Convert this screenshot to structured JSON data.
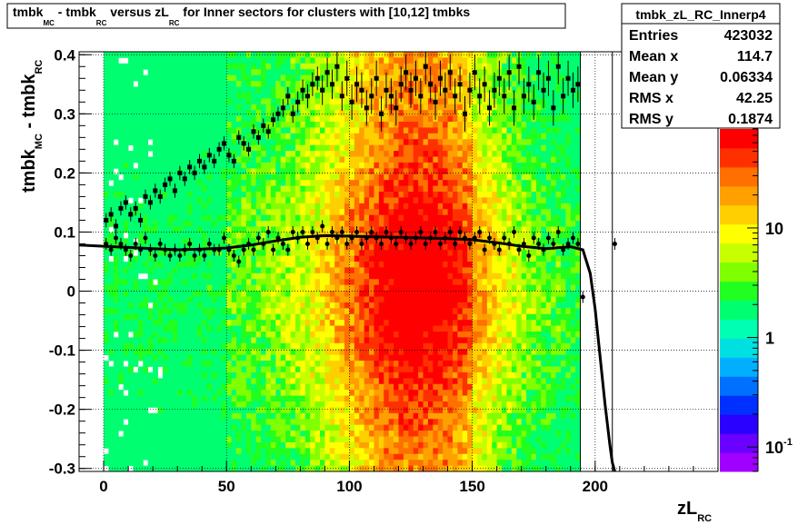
{
  "title": {
    "main": "tmbk",
    "sub1": "MC",
    "mid": " - tmbk",
    "sub2": "RC",
    "mid2": " versus zL",
    "sub3": "RC",
    "rest": " for Inner sectors for clusters with [10,12] tmbks"
  },
  "stats": {
    "name": "tmbk_zL_RC_Innerp4",
    "rows": [
      {
        "label": "Entries",
        "value": "423032"
      },
      {
        "label": "Mean x",
        "value": "114.7"
      },
      {
        "label": "Mean y",
        "value": "0.06334"
      },
      {
        "label": "RMS x",
        "value": "42.25"
      },
      {
        "label": "RMS y",
        "value": "0.1874"
      }
    ]
  },
  "chart_data": {
    "type": "heatmap",
    "xlabel_main": "zL",
    "xlabel_sub": "RC",
    "ylabel_main": "tmbk",
    "ylabel_sub1": "MC",
    "ylabel_mid": " - tmbk",
    "ylabel_sub2": "RC",
    "xlim": [
      -10,
      250
    ],
    "ylim": [
      -0.305,
      0.405
    ],
    "x_ticks": [
      0,
      50,
      100,
      150,
      200
    ],
    "x_tick_labels": [
      "0",
      "50",
      "100",
      "150",
      "200"
    ],
    "y_ticks": [
      -0.3,
      -0.2,
      -0.1,
      0,
      0.1,
      0.2,
      0.3,
      0.4
    ],
    "y_tick_labels": [
      "-0.3",
      "-0.2",
      "-0.1",
      "0",
      "0.1",
      "0.2",
      "0.3",
      "0.4"
    ],
    "grid": true,
    "colorbar": {
      "scale": "log",
      "range": [
        0.06,
        80
      ],
      "tick_labels": [
        {
          "value": 10,
          "label": "10"
        },
        {
          "value": 1,
          "label": "1"
        },
        {
          "value": 0.1,
          "base": "10",
          "exp": "-1"
        }
      ],
      "colors": [
        "#9f00ff",
        "#6a00ff",
        "#2a00ff",
        "#0030ff",
        "#0070ff",
        "#00b0ff",
        "#00e0e0",
        "#00ffb0",
        "#00ff70",
        "#20ff20",
        "#80ff00",
        "#c8ff00",
        "#ffff00",
        "#ffd000",
        "#ffa000",
        "#ff7000",
        "#ff3000",
        "#ff0000"
      ]
    },
    "series": [
      {
        "marker": "square",
        "x": [
          1,
          3,
          5,
          7,
          9,
          11,
          13,
          15,
          17,
          19,
          21,
          23,
          25,
          27,
          29,
          31,
          33,
          35,
          37,
          39,
          41,
          43,
          45,
          47,
          49,
          51,
          53,
          55,
          57,
          59,
          61,
          63,
          65,
          67,
          69,
          71,
          73,
          75,
          77,
          79,
          81,
          83,
          85,
          87,
          89,
          91,
          93,
          95,
          97,
          99,
          101,
          103,
          105,
          107,
          109,
          111,
          113,
          115,
          117,
          119,
          121,
          123,
          125,
          127,
          129,
          131,
          133,
          135,
          137,
          139,
          141,
          143,
          145,
          147,
          149,
          151,
          153,
          155,
          157,
          159,
          161,
          163,
          165,
          167,
          169,
          171,
          173,
          175,
          177,
          179,
          181,
          183,
          185,
          187,
          189,
          191,
          193
        ],
        "y": [
          0.12,
          0.13,
          0.11,
          0.14,
          0.15,
          0.13,
          0.14,
          0.12,
          0.16,
          0.15,
          0.17,
          0.16,
          0.18,
          0.19,
          0.17,
          0.2,
          0.19,
          0.21,
          0.2,
          0.22,
          0.21,
          0.23,
          0.22,
          0.24,
          0.25,
          0.23,
          0.22,
          0.26,
          0.25,
          0.24,
          0.27,
          0.26,
          0.28,
          0.27,
          0.29,
          0.3,
          0.31,
          0.33,
          0.3,
          0.32,
          0.34,
          0.33,
          0.35,
          0.36,
          0.34,
          0.37,
          0.35,
          0.38,
          0.33,
          0.36,
          0.32,
          0.35,
          0.34,
          0.31,
          0.33,
          0.36,
          0.3,
          0.34,
          0.33,
          0.31,
          0.35,
          0.37,
          0.34,
          0.36,
          0.33,
          0.38,
          0.35,
          0.32,
          0.36,
          0.34,
          0.37,
          0.33,
          0.35,
          0.3,
          0.34,
          0.37,
          0.33,
          0.35,
          0.31,
          0.34,
          0.36,
          0.33,
          0.37,
          0.31,
          0.38,
          0.33,
          0.35,
          0.32,
          0.37,
          0.34,
          0.36,
          0.31,
          0.38,
          0.33,
          0.36,
          0.34,
          0.35
        ],
        "err": [
          0.012,
          0.012,
          0.012,
          0.012,
          0.012,
          0.012,
          0.012,
          0.012,
          0.012,
          0.012,
          0.012,
          0.012,
          0.012,
          0.012,
          0.012,
          0.012,
          0.012,
          0.012,
          0.012,
          0.012,
          0.012,
          0.012,
          0.012,
          0.012,
          0.012,
          0.012,
          0.012,
          0.012,
          0.012,
          0.012,
          0.012,
          0.012,
          0.012,
          0.012,
          0.012,
          0.012,
          0.015,
          0.015,
          0.015,
          0.018,
          0.018,
          0.02,
          0.02,
          0.02,
          0.025,
          0.025,
          0.025,
          0.025,
          0.025,
          0.03,
          0.03,
          0.03,
          0.03,
          0.03,
          0.03,
          0.03,
          0.03,
          0.03,
          0.03,
          0.03,
          0.03,
          0.03,
          0.03,
          0.03,
          0.03,
          0.03,
          0.03,
          0.03,
          0.03,
          0.03,
          0.03,
          0.03,
          0.03,
          0.03,
          0.03,
          0.03,
          0.03,
          0.03,
          0.03,
          0.03,
          0.03,
          0.03,
          0.03,
          0.03,
          0.03,
          0.03,
          0.03,
          0.03,
          0.03,
          0.03,
          0.03,
          0.03,
          0.03,
          0.03,
          0.03,
          0.03,
          0.03
        ]
      },
      {
        "marker": "circle",
        "x": [
          1,
          3,
          5,
          7,
          9,
          11,
          13,
          15,
          17,
          19,
          21,
          23,
          25,
          27,
          29,
          31,
          33,
          35,
          37,
          39,
          41,
          43,
          45,
          47,
          49,
          51,
          53,
          55,
          57,
          59,
          61,
          63,
          65,
          67,
          69,
          71,
          73,
          75,
          77,
          79,
          81,
          83,
          85,
          87,
          89,
          91,
          93,
          95,
          97,
          99,
          101,
          103,
          105,
          107,
          109,
          111,
          113,
          115,
          117,
          119,
          121,
          123,
          125,
          127,
          129,
          131,
          133,
          135,
          137,
          139,
          141,
          143,
          145,
          147,
          149,
          151,
          153,
          155,
          157,
          159,
          161,
          163,
          165,
          167,
          169,
          171,
          173,
          175,
          177,
          179,
          181,
          183,
          185,
          187,
          189,
          191,
          193,
          195,
          208
        ],
        "y": [
          0.08,
          0.07,
          0.09,
          0.08,
          0.07,
          0.06,
          0.08,
          0.07,
          0.09,
          0.07,
          0.06,
          0.08,
          0.07,
          0.06,
          0.07,
          0.06,
          0.07,
          0.08,
          0.06,
          0.07,
          0.06,
          0.08,
          0.07,
          0.07,
          0.09,
          0.07,
          0.06,
          0.05,
          0.07,
          0.08,
          0.07,
          0.09,
          0.08,
          0.1,
          0.07,
          0.09,
          0.08,
          0.07,
          0.1,
          0.09,
          0.1,
          0.08,
          0.1,
          0.09,
          0.11,
          0.08,
          0.1,
          0.09,
          0.1,
          0.08,
          0.09,
          0.1,
          0.08,
          0.09,
          0.1,
          0.09,
          0.08,
          0.1,
          0.09,
          0.08,
          0.1,
          0.09,
          0.08,
          0.09,
          0.1,
          0.08,
          0.09,
          0.1,
          0.08,
          0.09,
          0.1,
          0.08,
          0.1,
          0.09,
          0.08,
          0.09,
          0.1,
          0.07,
          0.09,
          0.08,
          0.07,
          0.09,
          0.08,
          0.1,
          0.07,
          0.08,
          0.06,
          0.09,
          0.08,
          0.07,
          0.09,
          0.08,
          0.1,
          0.07,
          0.08,
          0.09,
          0.08,
          -0.01,
          0.08
        ],
        "err": [
          0.01,
          0.01,
          0.01,
          0.01,
          0.01,
          0.01,
          0.01,
          0.01,
          0.01,
          0.01,
          0.01,
          0.01,
          0.01,
          0.01,
          0.01,
          0.01,
          0.01,
          0.01,
          0.01,
          0.01,
          0.01,
          0.01,
          0.01,
          0.01,
          0.01,
          0.01,
          0.01,
          0.01,
          0.01,
          0.01,
          0.01,
          0.01,
          0.01,
          0.01,
          0.01,
          0.01,
          0.01,
          0.01,
          0.01,
          0.01,
          0.01,
          0.01,
          0.01,
          0.01,
          0.01,
          0.01,
          0.01,
          0.01,
          0.01,
          0.01,
          0.01,
          0.01,
          0.01,
          0.01,
          0.01,
          0.01,
          0.01,
          0.01,
          0.01,
          0.01,
          0.01,
          0.01,
          0.01,
          0.01,
          0.01,
          0.01,
          0.01,
          0.01,
          0.01,
          0.01,
          0.01,
          0.01,
          0.01,
          0.01,
          0.01,
          0.01,
          0.01,
          0.01,
          0.01,
          0.01,
          0.01,
          0.01,
          0.01,
          0.01,
          0.01,
          0.01,
          0.01,
          0.01,
          0.01,
          0.01,
          0.01,
          0.01,
          0.01,
          0.01,
          0.01,
          0.01,
          0.01,
          0.01,
          0.01
        ]
      }
    ],
    "fit_curve": {
      "x": [
        -10,
        0,
        10,
        20,
        30,
        40,
        50,
        60,
        70,
        80,
        90,
        100,
        110,
        120,
        130,
        140,
        150,
        160,
        170,
        180,
        190,
        195,
        198,
        200,
        202,
        204,
        206,
        207,
        208
      ],
      "y": [
        0.078,
        0.076,
        0.074,
        0.072,
        0.07,
        0.071,
        0.073,
        0.078,
        0.085,
        0.091,
        0.094,
        0.093,
        0.092,
        0.091,
        0.09,
        0.089,
        0.087,
        0.082,
        0.076,
        0.072,
        0.075,
        0.07,
        0.03,
        -0.03,
        -0.11,
        -0.19,
        -0.26,
        -0.29,
        -0.31
      ]
    },
    "vertical_lines_x": [
      194,
      207
    ]
  }
}
